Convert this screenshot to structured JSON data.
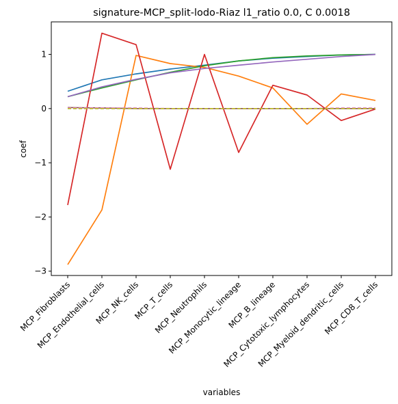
{
  "chart_data": {
    "type": "line",
    "title": "signature-MCP_split-lodo-Riaz l1_ratio 0.0, C 0.0018",
    "xlabel": "variables",
    "ylabel": "coef",
    "categories": [
      "MCP_Fibroblasts",
      "MCP_Endothelial_cells",
      "MCP_NK_cells",
      "MCP_T_cells",
      "MCP_Neutrophils",
      "MCP_Monocytic_lineage",
      "MCP_B_lineage",
      "MCP_Cytotoxic_lymphocytes",
      "MCP_Myeloid_dendritic_cells",
      "MCP_CD8_T_cells"
    ],
    "ylim": [
      -3.08,
      1.6
    ],
    "yticks": [
      -3,
      -2,
      -1,
      0,
      1
    ],
    "grid": false,
    "series": [
      {
        "color": "#1f77b4",
        "dash": "",
        "values": [
          0.32,
          0.53,
          0.64,
          0.73,
          0.8,
          0.88,
          0.93,
          0.96,
          0.99,
          1.0
        ]
      },
      {
        "color": "#ff7f0e",
        "dash": "",
        "values": [
          -2.88,
          -1.87,
          0.98,
          0.83,
          0.76,
          0.6,
          0.38,
          -0.29,
          0.27,
          0.15
        ]
      },
      {
        "color": "#2ca02c",
        "dash": "",
        "values": [
          0.22,
          0.38,
          0.53,
          0.67,
          0.79,
          0.88,
          0.94,
          0.97,
          0.99,
          1.0
        ]
      },
      {
        "color": "#d62728",
        "dash": "",
        "values": [
          -1.78,
          1.39,
          1.18,
          -1.12,
          1.0,
          -0.81,
          0.43,
          0.25,
          -0.22,
          -0.01
        ]
      },
      {
        "color": "#9467bd",
        "dash": "",
        "values": [
          0.22,
          0.4,
          0.54,
          0.66,
          0.74,
          0.8,
          0.86,
          0.91,
          0.96,
          1.0
        ]
      },
      {
        "color": "#8c564b",
        "dash": "",
        "values": [
          0.02,
          0.01,
          0.0,
          0.0,
          0.0,
          0.0,
          0.0,
          0.0,
          0.0,
          0.0
        ]
      },
      {
        "color": "#7f7f7f",
        "dash": "5,3",
        "values": [
          0.0,
          0.0,
          0.0,
          0.0,
          0.0,
          0.0,
          0.0,
          0.0,
          0.0,
          0.0
        ]
      },
      {
        "color": "#e377c2",
        "dash": "5,3",
        "values": [
          0.01,
          0.01,
          0.01,
          0.0,
          0.0,
          0.0,
          0.0,
          0.0,
          0.01,
          0.01
        ]
      },
      {
        "color": "#bcbd22",
        "dash": "5,3",
        "values": [
          0.0,
          0.0,
          0.0,
          0.0,
          0.0,
          0.0,
          0.0,
          0.0,
          0.0,
          0.0
        ]
      }
    ]
  }
}
